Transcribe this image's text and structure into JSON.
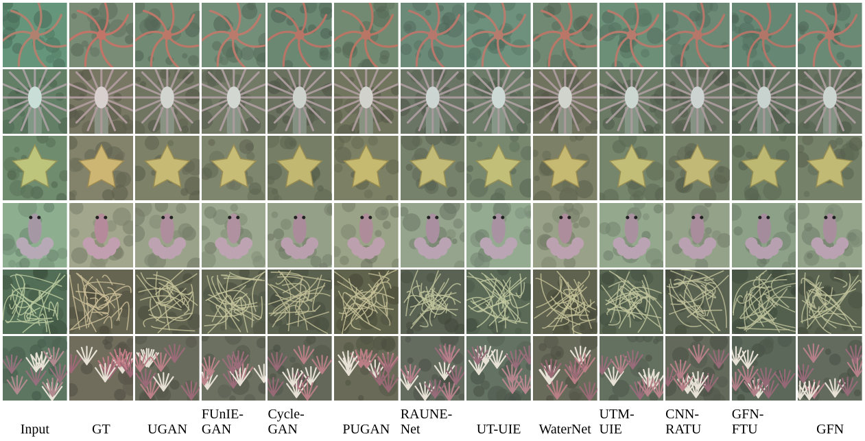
{
  "columns": [
    {
      "label": "Input",
      "tint": "#6fa384",
      "cast": "#7fb89a"
    },
    {
      "label": "GT",
      "tint": "#9a8f7a",
      "cast": "#b48b7e"
    },
    {
      "label": "UGAN",
      "tint": "#8b8a76",
      "cast": "#9e9882"
    },
    {
      "label": "FUnIE-\nGAN",
      "tint": "#909581",
      "cast": "#a0a28c"
    },
    {
      "label": "Cycle-\nGAN",
      "tint": "#7e8572",
      "cast": "#8f8f7a"
    },
    {
      "label": "PUGAN",
      "tint": "#8c8a6f",
      "cast": "#9d9276"
    },
    {
      "label": "RAUNE-\nNet",
      "tint": "#7f8b7e",
      "cast": "#8e9a8c"
    },
    {
      "label": "UT-UIE",
      "tint": "#819a86",
      "cast": "#8ea893"
    },
    {
      "label": "WaterNet",
      "tint": "#8a8872",
      "cast": "#9b947c"
    },
    {
      "label": "UTM-\nUIE",
      "tint": "#7f957f",
      "cast": "#8fa28d"
    },
    {
      "label": "CNN-\nRATU",
      "tint": "#7d8877",
      "cast": "#8c9584"
    },
    {
      "label": "GFN-\nFTU",
      "tint": "#6f8472",
      "cast": "#7f9280"
    },
    {
      "label": "GFN",
      "tint": "#7c8b78",
      "cast": "#8c9886"
    }
  ],
  "rows": [
    {
      "subject": "brittle-star-red",
      "base": "#5c8a73",
      "mark": "#c76a5e"
    },
    {
      "subject": "anemone-white",
      "base": "#5a6350",
      "mark": "#e8eef0"
    },
    {
      "subject": "sea-star-yellow",
      "base": "#6f7a5c",
      "mark": "#d8c96e"
    },
    {
      "subject": "octopus-pink",
      "base": "#a6b89a",
      "mark": "#b58aa8"
    },
    {
      "subject": "tangled-stalks",
      "base": "#3c4330",
      "mark": "#d9d7a6"
    },
    {
      "subject": "coral-garden",
      "base": "#4d5146",
      "mark": "#c7768a"
    }
  ]
}
